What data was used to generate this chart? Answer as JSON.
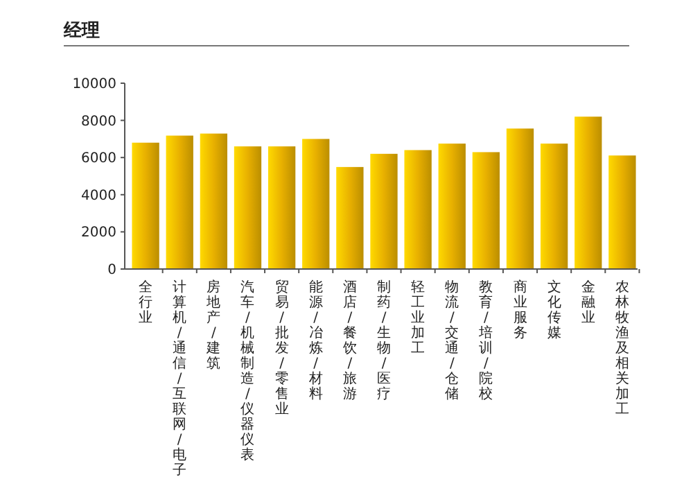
{
  "chart_data": {
    "type": "bar",
    "title": "经理",
    "categories": [
      "全行业",
      "计算机/通信/互联网/电子",
      "房地产/建筑",
      "汽车/机械制造/仪器仪表",
      "贸易/批发/零售业",
      "能源/冶炼/材料",
      "酒店/餐饮/旅游",
      "制药/生物/医疗",
      "轻工业加工",
      "物流/交通/仓储",
      "教育/培训/院校",
      "商业服务",
      "文化传媒",
      "金融业",
      "农林牧渔及相关加工"
    ],
    "values": [
      6800,
      7180,
      7290,
      6600,
      6600,
      7000,
      5490,
      6200,
      6400,
      6750,
      6290,
      7560,
      6750,
      8200,
      6110
    ],
    "color": "#e8b000",
    "ylim": [
      0,
      10000
    ],
    "yticks": [
      0,
      2000,
      4000,
      6000,
      8000,
      10000
    ],
    "grid": false
  }
}
